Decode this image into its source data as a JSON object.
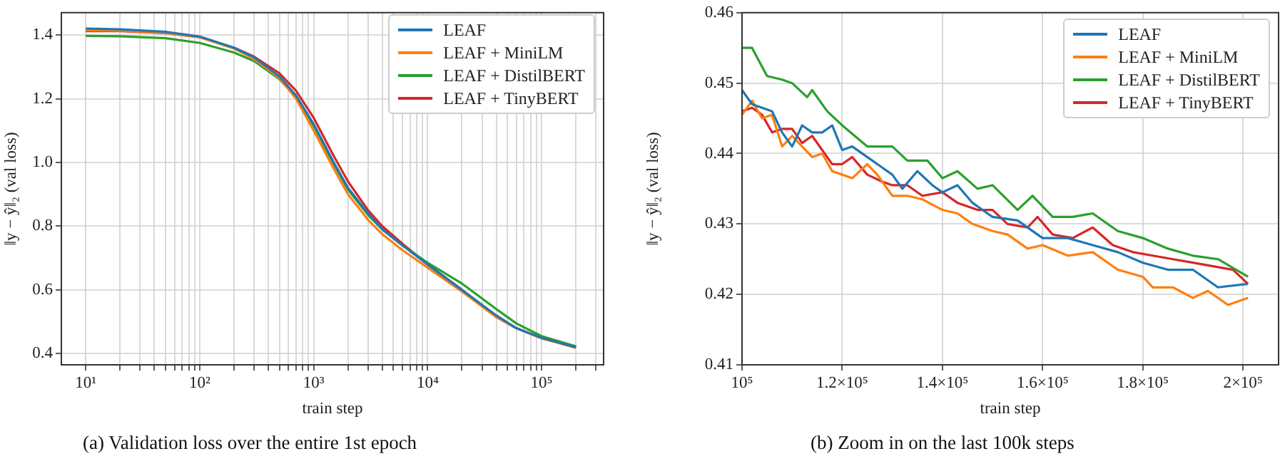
{
  "chart_data": [
    {
      "type": "line",
      "xlabel": "train step",
      "ylabel": "‖y − ŷ‖₂ (val loss)",
      "log": "x",
      "grid": true,
      "legend": "top right",
      "annotations": [
        "(a) Validation loss over the entire 1st epoch"
      ],
      "xlim": [
        6.1,
        350000
      ],
      "ylim": [
        0.365,
        1.47
      ],
      "xticks": [
        {
          "value": 10,
          "label": "10¹"
        },
        {
          "value": 20,
          "label": null
        },
        {
          "value": 30,
          "label": null
        },
        {
          "value": 40,
          "label": null
        },
        {
          "value": 50,
          "label": null
        },
        {
          "value": 60,
          "label": null
        },
        {
          "value": 70,
          "label": null
        },
        {
          "value": 80,
          "label": null
        },
        {
          "value": 90,
          "label": null
        },
        {
          "value": 100,
          "label": "10²"
        },
        {
          "value": 200,
          "label": null
        },
        {
          "value": 300,
          "label": null
        },
        {
          "value": 400,
          "label": null
        },
        {
          "value": 500,
          "label": null
        },
        {
          "value": 600,
          "label": null
        },
        {
          "value": 700,
          "label": null
        },
        {
          "value": 800,
          "label": null
        },
        {
          "value": 900,
          "label": null
        },
        {
          "value": 1000,
          "label": "10³"
        },
        {
          "value": 2000,
          "label": null
        },
        {
          "value": 3000,
          "label": null
        },
        {
          "value": 4000,
          "label": null
        },
        {
          "value": 5000,
          "label": null
        },
        {
          "value": 6000,
          "label": null
        },
        {
          "value": 7000,
          "label": null
        },
        {
          "value": 8000,
          "label": null
        },
        {
          "value": 9000,
          "label": null
        },
        {
          "value": 10000,
          "label": "10⁴"
        },
        {
          "value": 20000,
          "label": null
        },
        {
          "value": 30000,
          "label": null
        },
        {
          "value": 40000,
          "label": null
        },
        {
          "value": 50000,
          "label": null
        },
        {
          "value": 60000,
          "label": null
        },
        {
          "value": 70000,
          "label": null
        },
        {
          "value": 80000,
          "label": null
        },
        {
          "value": 90000,
          "label": null
        },
        {
          "value": 100000,
          "label": "10⁵"
        },
        {
          "value": 200000,
          "label": null
        },
        {
          "value": 300000,
          "label": null
        }
      ],
      "yticks": [
        {
          "value": 0.4,
          "label": "0.4"
        },
        {
          "value": 0.6,
          "label": "0.6"
        },
        {
          "value": 0.8,
          "label": "0.8"
        },
        {
          "value": 1.0,
          "label": "1.0"
        },
        {
          "value": 1.2,
          "label": "1.2"
        },
        {
          "value": 1.4,
          "label": "1.4"
        }
      ],
      "x": [
        10,
        20,
        50,
        100,
        200,
        300,
        500,
        700,
        1000,
        1500,
        2000,
        3000,
        4000,
        6000,
        10000,
        20000,
        40000,
        60000,
        100000,
        200000
      ],
      "series": [
        {
          "name": "LEAF",
          "color": "#1f77b4",
          "values": [
            1.42,
            1.418,
            1.41,
            1.395,
            1.36,
            1.33,
            1.27,
            1.21,
            1.12,
            1.0,
            0.92,
            0.84,
            0.79,
            0.74,
            0.68,
            0.6,
            0.52,
            0.48,
            0.45,
            0.42
          ]
        },
        {
          "name": "LEAF + MiniLM",
          "color": "#ff7f0e",
          "values": [
            1.415,
            1.414,
            1.407,
            1.393,
            1.357,
            1.325,
            1.265,
            1.2,
            1.1,
            0.98,
            0.9,
            0.82,
            0.775,
            0.725,
            0.67,
            0.595,
            0.515,
            0.48,
            0.448,
            0.418
          ]
        },
        {
          "name": "LEAF + DistilBERT",
          "color": "#2ca02c",
          "values": [
            1.397,
            1.396,
            1.39,
            1.375,
            1.345,
            1.318,
            1.262,
            1.205,
            1.115,
            0.995,
            0.915,
            0.835,
            0.79,
            0.74,
            0.685,
            0.62,
            0.54,
            0.495,
            0.455,
            0.423
          ]
        },
        {
          "name": "LEAF + TinyBERT",
          "color": "#d62728",
          "values": [
            1.412,
            1.412,
            1.406,
            1.393,
            1.36,
            1.332,
            1.28,
            1.225,
            1.14,
            1.02,
            0.94,
            0.85,
            0.8,
            0.745,
            0.68,
            0.6,
            0.515,
            0.48,
            0.448,
            0.421
          ]
        }
      ]
    },
    {
      "type": "line",
      "xlabel": "train step",
      "ylabel": "‖y − ŷ‖₂ (val loss)",
      "grid": true,
      "legend": "top right",
      "annotations": [
        "(b) Zoom in on the last 100k steps"
      ],
      "xlim": [
        100000,
        207100
      ],
      "ylim": [
        0.41,
        0.46
      ],
      "xticks": [
        {
          "value": 100000,
          "label": "10⁵"
        },
        {
          "value": 120000,
          "label": "1.2×10⁵"
        },
        {
          "value": 140000,
          "label": "1.4×10⁵"
        },
        {
          "value": 160000,
          "label": "1.6×10⁵"
        },
        {
          "value": 180000,
          "label": "1.8×10⁵"
        },
        {
          "value": 200000,
          "label": "2×10⁵"
        }
      ],
      "yticks": [
        0.41,
        0.42,
        0.43,
        0.44,
        0.45,
        0.46
      ],
      "series": [
        {
          "name": "LEAF",
          "color": "#1f77b4",
          "x": [
            100000,
            102000,
            104000,
            106000,
            108000,
            110000,
            112000,
            114000,
            116000,
            118000,
            120000,
            122000,
            125000,
            128000,
            130000,
            132000,
            135000,
            138000,
            140000,
            143000,
            146000,
            150000,
            155000,
            160000,
            165000,
            170000,
            175000,
            180000,
            185000,
            190000,
            195000,
            201000
          ],
          "values": [
            0.449,
            0.447,
            0.4465,
            0.446,
            0.443,
            0.441,
            0.444,
            0.443,
            0.443,
            0.444,
            0.4405,
            0.441,
            0.4395,
            0.438,
            0.437,
            0.435,
            0.4375,
            0.4355,
            0.4345,
            0.4355,
            0.433,
            0.431,
            0.4305,
            0.428,
            0.428,
            0.427,
            0.426,
            0.4245,
            0.4235,
            0.4235,
            0.421,
            0.4215
          ]
        },
        {
          "name": "LEAF + MiniLM",
          "color": "#ff7f0e",
          "x": [
            100000,
            102000,
            104000,
            106000,
            108000,
            110000,
            112000,
            114000,
            116000,
            118000,
            120000,
            122000,
            125000,
            127000,
            130000,
            133000,
            136000,
            140000,
            143000,
            146000,
            150000,
            153000,
            157000,
            160000,
            165000,
            170000,
            175000,
            180000,
            182000,
            186000,
            190000,
            193000,
            197000,
            201000
          ],
          "values": [
            0.4455,
            0.4475,
            0.445,
            0.4455,
            0.441,
            0.4425,
            0.441,
            0.4395,
            0.44,
            0.4375,
            0.437,
            0.4365,
            0.4385,
            0.437,
            0.434,
            0.434,
            0.4335,
            0.432,
            0.4315,
            0.43,
            0.429,
            0.4285,
            0.4265,
            0.427,
            0.4255,
            0.426,
            0.4235,
            0.4225,
            0.421,
            0.421,
            0.4195,
            0.4205,
            0.4185,
            0.4195
          ]
        },
        {
          "name": "LEAF + DistilBERT",
          "color": "#2ca02c",
          "x": [
            100000,
            102000,
            105000,
            108000,
            110000,
            113000,
            114000,
            117000,
            120000,
            125000,
            130000,
            133000,
            137000,
            140000,
            143000,
            147000,
            150000,
            155000,
            158000,
            162000,
            166000,
            170000,
            175000,
            180000,
            185000,
            190000,
            195000,
            201000
          ],
          "values": [
            0.455,
            0.455,
            0.451,
            0.4505,
            0.45,
            0.448,
            0.449,
            0.446,
            0.444,
            0.441,
            0.441,
            0.439,
            0.439,
            0.4365,
            0.4375,
            0.435,
            0.4355,
            0.432,
            0.434,
            0.431,
            0.431,
            0.4315,
            0.429,
            0.428,
            0.4265,
            0.4255,
            0.425,
            0.4225
          ]
        },
        {
          "name": "LEAF + TinyBERT",
          "color": "#d62728",
          "x": [
            100000,
            102000,
            104000,
            106000,
            108000,
            110000,
            112000,
            114000,
            116000,
            118000,
            120000,
            122000,
            125000,
            128000,
            130000,
            133000,
            136000,
            140000,
            143000,
            147000,
            150000,
            153000,
            157000,
            159000,
            162000,
            166000,
            170000,
            174000,
            178000,
            182000,
            186000,
            190000,
            194000,
            198000,
            201000
          ],
          "values": [
            0.446,
            0.4465,
            0.4455,
            0.443,
            0.4435,
            0.4435,
            0.4415,
            0.4425,
            0.4405,
            0.4385,
            0.4385,
            0.4395,
            0.437,
            0.436,
            0.4355,
            0.4355,
            0.434,
            0.4345,
            0.433,
            0.432,
            0.432,
            0.43,
            0.4295,
            0.431,
            0.4285,
            0.428,
            0.4295,
            0.427,
            0.426,
            0.4255,
            0.425,
            0.4245,
            0.424,
            0.4235,
            0.4215
          ]
        }
      ]
    }
  ]
}
